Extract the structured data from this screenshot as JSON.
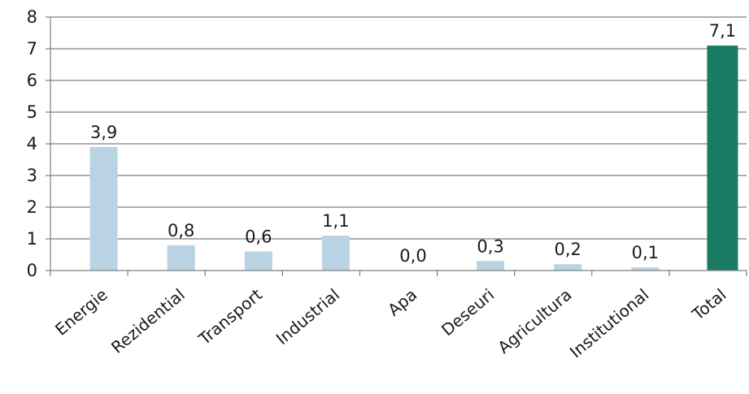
{
  "chart_data": {
    "type": "bar",
    "categories": [
      "Energie",
      "Rezidential",
      "Transport",
      "Industrial",
      "Apa",
      "Deseuri",
      "Agricultura",
      "Institutional",
      "Total"
    ],
    "values": [
      3.9,
      0.8,
      0.6,
      1.1,
      0.0,
      0.3,
      0.2,
      0.1,
      7.1
    ],
    "data_labels": [
      "3,9",
      "0,8",
      "0,6",
      "1,1",
      "0,0",
      "0,3",
      "0,2",
      "0,1",
      "7,1"
    ],
    "ylim": [
      0,
      8
    ],
    "yticks": [
      "0",
      "1",
      "2",
      "3",
      "4",
      "5",
      "6",
      "7",
      "8"
    ],
    "grid": true,
    "title": "",
    "xlabel": "",
    "ylabel": "",
    "colors": {
      "bar": "#b9d3e3",
      "highlight_bar": "#1a7a64",
      "grid": "#7f7f7f",
      "axis": "#7f7f7f"
    },
    "highlight_category": "Total"
  }
}
